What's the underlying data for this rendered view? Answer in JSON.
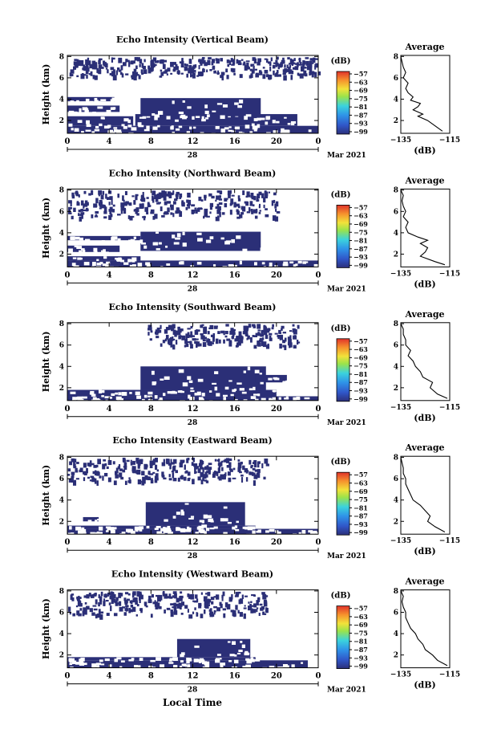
{
  "figure": {
    "bottom_xlabel": "Local Time",
    "date_label": "Mar 2021",
    "day_label": "28",
    "colorbar_unit": "(dB)",
    "avg_title": "Average",
    "avg_xlabel": "(dB)",
    "ylabel": "Height (km)"
  },
  "chart_data": [
    {
      "type": "heatmap",
      "title": "Echo Intensity (Vertical Beam)",
      "ylabel": "Height (km)",
      "x_ticks": [
        "0",
        "4",
        "8",
        "12",
        "16",
        "20",
        "0"
      ],
      "xlim": [
        0,
        24
      ],
      "y_ticks": [
        "2",
        "4",
        "6",
        "8"
      ],
      "ylim": [
        0.8,
        8.1
      ],
      "dominant_value_db": -99,
      "echo_regions": [
        {
          "t": [
            0,
            24
          ],
          "h": [
            0.8,
            1.5
          ]
        },
        {
          "t": [
            0,
            6.3
          ],
          "h": [
            1.5,
            2.4
          ]
        },
        {
          "t": [
            6.5,
            22
          ],
          "h": [
            1.5,
            2.6
          ]
        },
        {
          "t": [
            0,
            5
          ],
          "h": [
            2.8,
            3.4
          ]
        },
        {
          "t": [
            7,
            18.5
          ],
          "h": [
            2.4,
            4.1
          ]
        },
        {
          "t": [
            0,
            4.5
          ],
          "h": [
            3.8,
            4.2
          ]
        },
        {
          "t": [
            0,
            24
          ],
          "h": [
            6.2,
            8.0
          ],
          "sparse": true
        }
      ],
      "colorbar": {
        "label": "(dB)",
        "ticks": [
          -57,
          -63,
          -69,
          -75,
          -81,
          -87,
          -93,
          -99
        ]
      },
      "average": {
        "title": "Average",
        "xlabel": "(dB)",
        "x_ticks": [
          "-135",
          "-115"
        ],
        "xlim": [
          -135,
          -115
        ],
        "y_ticks": [
          "2",
          "4",
          "6",
          "8"
        ],
        "profile": [
          [
            1,
            -118
          ],
          [
            1.5,
            -121
          ],
          [
            2,
            -124
          ],
          [
            2.4,
            -128
          ],
          [
            2.6,
            -126
          ],
          [
            3,
            -130
          ],
          [
            3.3,
            -128
          ],
          [
            3.6,
            -127
          ],
          [
            3.9,
            -131
          ],
          [
            4.2,
            -130
          ],
          [
            4.6,
            -132
          ],
          [
            5,
            -133
          ],
          [
            5.5,
            -132
          ],
          [
            6,
            -134
          ],
          [
            6.5,
            -133
          ],
          [
            7,
            -134
          ],
          [
            7.5,
            -134.5
          ],
          [
            8,
            -135
          ]
        ]
      }
    },
    {
      "type": "heatmap",
      "title": "Echo Intensity (Northward Beam)",
      "ylabel": "Height (km)",
      "x_ticks": [
        "0",
        "4",
        "8",
        "12",
        "16",
        "20",
        "0"
      ],
      "xlim": [
        0,
        24
      ],
      "y_ticks": [
        "2",
        "4",
        "6",
        "8"
      ],
      "ylim": [
        0.8,
        8.1
      ],
      "dominant_value_db": -99,
      "echo_regions": [
        {
          "t": [
            0,
            24
          ],
          "h": [
            0.8,
            1.4
          ]
        },
        {
          "t": [
            0,
            7
          ],
          "h": [
            1.4,
            1.8
          ]
        },
        {
          "t": [
            0,
            5
          ],
          "h": [
            2.2,
            2.8
          ]
        },
        {
          "t": [
            7,
            18.5
          ],
          "h": [
            2.3,
            4.1
          ]
        },
        {
          "t": [
            0,
            7
          ],
          "h": [
            3.3,
            3.7
          ]
        },
        {
          "t": [
            0,
            20
          ],
          "h": [
            5.5,
            8.0
          ],
          "sparse": true
        }
      ],
      "colorbar": {
        "label": "(dB)",
        "ticks": [
          -57,
          -63,
          -69,
          -75,
          -81,
          -87,
          -93,
          -99
        ]
      },
      "average": {
        "title": "Average",
        "xlabel": "(dB)",
        "x_ticks": [
          "-135",
          "-115"
        ],
        "xlim": [
          -135,
          -115
        ],
        "y_ticks": [
          "2",
          "4",
          "6",
          "8"
        ],
        "profile": [
          [
            1,
            -117
          ],
          [
            1.3,
            -121
          ],
          [
            1.8,
            -127
          ],
          [
            2.2,
            -125
          ],
          [
            2.6,
            -124
          ],
          [
            3,
            -127
          ],
          [
            3.3,
            -124
          ],
          [
            3.6,
            -128
          ],
          [
            4,
            -132
          ],
          [
            4.5,
            -133
          ],
          [
            5,
            -132
          ],
          [
            5.5,
            -134
          ],
          [
            6,
            -133
          ],
          [
            6.5,
            -134
          ],
          [
            7,
            -134.5
          ],
          [
            7.5,
            -134
          ],
          [
            8,
            -135
          ]
        ]
      }
    },
    {
      "type": "heatmap",
      "title": "Echo Intensity (Southward Beam)",
      "ylabel": "Height (km)",
      "x_ticks": [
        "0",
        "4",
        "8",
        "12",
        "16",
        "20",
        "0"
      ],
      "xlim": [
        0,
        24
      ],
      "y_ticks": [
        "2",
        "4",
        "6",
        "8"
      ],
      "ylim": [
        0.8,
        8.1
      ],
      "dominant_value_db": -99,
      "echo_regions": [
        {
          "t": [
            0,
            24
          ],
          "h": [
            0.8,
            1.2
          ]
        },
        {
          "t": [
            0,
            20
          ],
          "h": [
            1.2,
            1.8
          ]
        },
        {
          "t": [
            7,
            19
          ],
          "h": [
            1.8,
            4.0
          ]
        },
        {
          "t": [
            18,
            21
          ],
          "h": [
            2.5,
            3.2
          ]
        },
        {
          "t": [
            7.5,
            22
          ],
          "h": [
            6.0,
            8.0
          ],
          "sparse": true
        }
      ],
      "colorbar": {
        "label": "(dB)",
        "ticks": [
          -57,
          -63,
          -69,
          -75,
          -81,
          -87,
          -93,
          -99
        ]
      },
      "average": {
        "title": "Average",
        "xlabel": "(dB)",
        "x_ticks": [
          "-135",
          "-115"
        ],
        "xlim": [
          -135,
          -115
        ],
        "y_ticks": [
          "2",
          "4",
          "6",
          "8"
        ],
        "profile": [
          [
            1,
            -116
          ],
          [
            1.4,
            -120
          ],
          [
            2,
            -123
          ],
          [
            2.5,
            -122
          ],
          [
            3,
            -126
          ],
          [
            3.5,
            -127
          ],
          [
            4,
            -129
          ],
          [
            4.5,
            -130
          ],
          [
            5,
            -132
          ],
          [
            5.5,
            -131
          ],
          [
            6,
            -133
          ],
          [
            6.5,
            -133
          ],
          [
            7,
            -134
          ],
          [
            7.5,
            -134
          ],
          [
            8,
            -135
          ]
        ]
      }
    },
    {
      "type": "heatmap",
      "title": "Echo Intensity (Eastward Beam)",
      "ylabel": "Height (km)",
      "x_ticks": [
        "0",
        "4",
        "8",
        "12",
        "16",
        "20",
        "0"
      ],
      "xlim": [
        0,
        24
      ],
      "y_ticks": [
        "2",
        "4",
        "6",
        "8"
      ],
      "ylim": [
        0.8,
        8.1
      ],
      "dominant_value_db": -99,
      "echo_regions": [
        {
          "t": [
            0,
            24
          ],
          "h": [
            0.8,
            1.3
          ]
        },
        {
          "t": [
            0,
            18
          ],
          "h": [
            1.3,
            1.6
          ]
        },
        {
          "t": [
            7.5,
            17
          ],
          "h": [
            1.6,
            3.8
          ]
        },
        {
          "t": [
            1.5,
            3
          ],
          "h": [
            2.0,
            2.4
          ]
        },
        {
          "t": [
            0,
            19
          ],
          "h": [
            5.8,
            8.0
          ],
          "sparse": true
        }
      ],
      "colorbar": {
        "label": "(dB)",
        "ticks": [
          -57,
          -63,
          -69,
          -75,
          -81,
          -87,
          -93,
          -99
        ]
      },
      "average": {
        "title": "Average",
        "xlabel": "(dB)",
        "x_ticks": [
          "-135",
          "-115"
        ],
        "xlim": [
          -135,
          -115
        ],
        "y_ticks": [
          "2",
          "4",
          "6",
          "8"
        ],
        "profile": [
          [
            1,
            -117
          ],
          [
            1.5,
            -121
          ],
          [
            2,
            -124
          ],
          [
            2.5,
            -123
          ],
          [
            3,
            -125
          ],
          [
            3.5,
            -127
          ],
          [
            4,
            -130
          ],
          [
            4.5,
            -131
          ],
          [
            5,
            -132
          ],
          [
            5.5,
            -133
          ],
          [
            6,
            -133
          ],
          [
            6.5,
            -134
          ],
          [
            7,
            -134
          ],
          [
            7.5,
            -134.5
          ],
          [
            8,
            -135
          ]
        ]
      }
    },
    {
      "type": "heatmap",
      "title": "Echo Intensity (Westward Beam)",
      "ylabel": "Height (km)",
      "xlabel": "Local Time",
      "x_ticks": [
        "0",
        "4",
        "8",
        "12",
        "16",
        "20",
        "0"
      ],
      "xlim": [
        0,
        24
      ],
      "y_ticks": [
        "2",
        "4",
        "6",
        "8"
      ],
      "ylim": [
        0.8,
        8.1
      ],
      "dominant_value_db": -99,
      "echo_regions": [
        {
          "t": [
            0,
            23
          ],
          "h": [
            0.8,
            1.5
          ]
        },
        {
          "t": [
            10.5,
            17.5
          ],
          "h": [
            1.8,
            3.5
          ]
        },
        {
          "t": [
            0,
            18
          ],
          "h": [
            1.5,
            1.8
          ]
        },
        {
          "t": [
            0,
            19
          ],
          "h": [
            5.8,
            8.0
          ],
          "sparse": true
        }
      ],
      "colorbar": {
        "label": "(dB)",
        "ticks": [
          -57,
          -63,
          -69,
          -75,
          -81,
          -87,
          -93,
          -99
        ]
      },
      "average": {
        "title": "Average",
        "xlabel": "(dB)",
        "x_ticks": [
          "-135",
          "-115"
        ],
        "xlim": [
          -135,
          -115
        ],
        "y_ticks": [
          "2",
          "4",
          "6",
          "8"
        ],
        "profile": [
          [
            1,
            -116
          ],
          [
            1.5,
            -120
          ],
          [
            2,
            -122
          ],
          [
            2.5,
            -125
          ],
          [
            3,
            -126
          ],
          [
            3.5,
            -128
          ],
          [
            4,
            -129
          ],
          [
            4.5,
            -131
          ],
          [
            5,
            -132
          ],
          [
            5.5,
            -133
          ],
          [
            6,
            -133
          ],
          [
            6.5,
            -134
          ],
          [
            7,
            -134.5
          ],
          [
            7.5,
            -134
          ],
          [
            8,
            -135
          ]
        ]
      }
    }
  ]
}
